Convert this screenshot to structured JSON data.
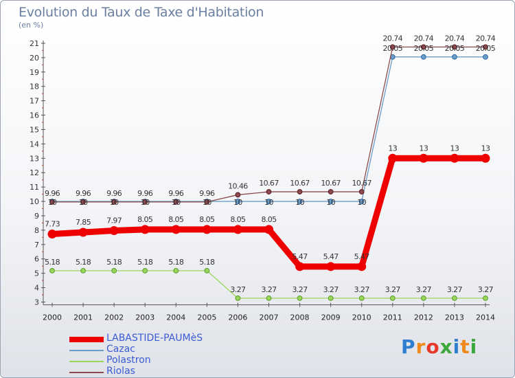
{
  "title": "Evolution du Taux de Taxe d'Habitation",
  "unit_label": "(en %)",
  "brand": {
    "text": "Proxiti",
    "letter_colors": [
      "#2f7fd0",
      "#f08a1c",
      "#e83a2a",
      "#3aa83a",
      "#2f7fd0",
      "#f08a1c",
      "#3aa83a"
    ]
  },
  "chart_data": {
    "type": "line",
    "title": "Evolution du Taux de Taxe d'Habitation",
    "ylabel": "(en %)",
    "xlabel": "",
    "x": [
      2000,
      2001,
      2002,
      2003,
      2004,
      2005,
      2006,
      2007,
      2008,
      2009,
      2010,
      2011,
      2012,
      2013,
      2014
    ],
    "ylim": [
      3,
      21
    ],
    "yticks": [
      3,
      4,
      5,
      6,
      7,
      8,
      9,
      10,
      11,
      12,
      13,
      14,
      15,
      16,
      17,
      18,
      19,
      20,
      21
    ],
    "grid": false,
    "legend_position": "bottom-left",
    "series": [
      {
        "name": "LABASTIDE-PAUMèS",
        "color": "#ee0000",
        "values": [
          7.73,
          7.85,
          7.97,
          8.05,
          8.05,
          8.05,
          8.05,
          8.05,
          5.47,
          5.47,
          5.47,
          13,
          13,
          13,
          13
        ],
        "labels": [
          "7.73",
          "7.85",
          "7.97",
          "8.05",
          "8.05",
          "8.05",
          "8.05",
          "8.05",
          "5.47",
          "5.47",
          "5.47",
          "13",
          "13",
          "13",
          "13"
        ]
      },
      {
        "name": "Cazac",
        "color": "#6a9cc8",
        "values": [
          10,
          10,
          10,
          10,
          10,
          10,
          10,
          10,
          10,
          10,
          10,
          20.05,
          20.05,
          20.05,
          20.05
        ],
        "labels": [
          "10",
          "10",
          "10",
          "10",
          "10",
          "10",
          "10",
          "10",
          "10",
          "10",
          "10",
          "20.05",
          "20.05",
          "20.05",
          "20.05"
        ]
      },
      {
        "name": "Polastron",
        "color": "#9ad65c",
        "values": [
          5.18,
          5.18,
          5.18,
          5.18,
          5.18,
          5.18,
          3.27,
          3.27,
          3.27,
          3.27,
          3.27,
          3.27,
          3.27,
          3.27,
          3.27
        ],
        "labels": [
          "5.18",
          "5.18",
          "5.18",
          "5.18",
          "5.18",
          "5.18",
          "3.27",
          "3.27",
          "3.27",
          "3.27",
          "3.27",
          "3.27",
          "3.27",
          "3.27",
          "3.27"
        ]
      },
      {
        "name": "Riolas",
        "color": "#8a4a4e",
        "values": [
          9.96,
          9.96,
          9.96,
          9.96,
          9.96,
          9.96,
          10.46,
          10.67,
          10.67,
          10.67,
          10.67,
          20.74,
          20.74,
          20.74,
          20.74
        ],
        "labels": [
          "9.96",
          "9.96",
          "9.96",
          "9.96",
          "9.96",
          "9.96",
          "10.46",
          "10.67",
          "10.67",
          "10.67",
          "10.67",
          "20.74",
          "20.74",
          "20.74",
          "20.74"
        ]
      }
    ]
  }
}
